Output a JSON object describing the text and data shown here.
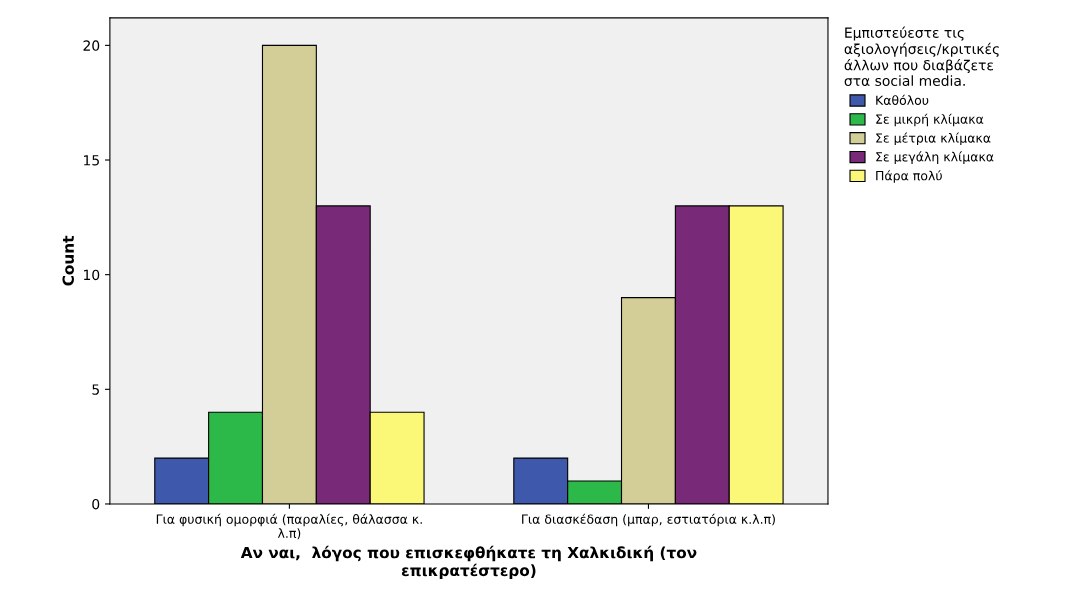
{
  "chart_data": {
    "type": "bar",
    "categories": [
      "Για φυσική ομορφιά (παραλίες, θάλασσα κ.\nλ.π)",
      "Για διασκέδαση (μπαρ, εστιατόρια κ.λ.π)"
    ],
    "series": [
      {
        "name": "Καθόλου",
        "color": "#3e58ac",
        "values": [
          2,
          2
        ]
      },
      {
        "name": "Σε μικρή κλίμακα",
        "color": "#2db84a",
        "values": [
          4,
          1
        ]
      },
      {
        "name": "Σε μέτρια κλίμακα",
        "color": "#d3ce97",
        "values": [
          20,
          9
        ]
      },
      {
        "name": "Σε μεγάλη κλίμακα",
        "color": "#782a78",
        "values": [
          13,
          13
        ]
      },
      {
        "name": "Πάρα πολύ",
        "color": "#fbf777",
        "values": [
          4,
          13
        ]
      }
    ],
    "xlabel": "Αν ναι,  λόγος που επισκεφθήκατε τη Χαλκιδική (τον\nεπικρατέστερο)",
    "ylabel": "Count",
    "legend_title": "Εμπιστεύεστε τις\nαξιολογήσεις/κριτικές\nάλλων που διαβάζετε\nστα social media.",
    "legend": "top right",
    "ylim": [
      0,
      21.2
    ],
    "yticks": [
      0,
      5,
      10,
      15,
      20
    ],
    "grid": false
  }
}
